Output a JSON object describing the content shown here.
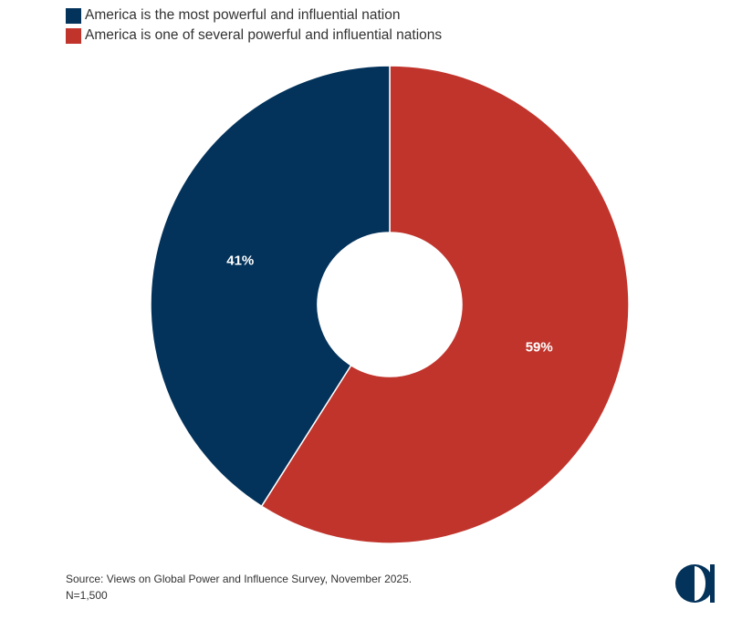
{
  "chart_data": {
    "type": "pie",
    "donut": true,
    "categories": [
      "America is the most powerful and influential nation",
      "America is one of several powerful and influential nations"
    ],
    "values": [
      41,
      59
    ],
    "value_labels": [
      "41%",
      "59%"
    ],
    "colors": [
      "#03325a",
      "#c0342c"
    ],
    "legend_position": "top-left",
    "title": "",
    "source": "Source: Views on Global Power and Influence Survey, November 2025.",
    "note": "N=1,500"
  },
  "logo": {
    "icon": "half-moon-logo-icon",
    "color": "#03325a"
  }
}
